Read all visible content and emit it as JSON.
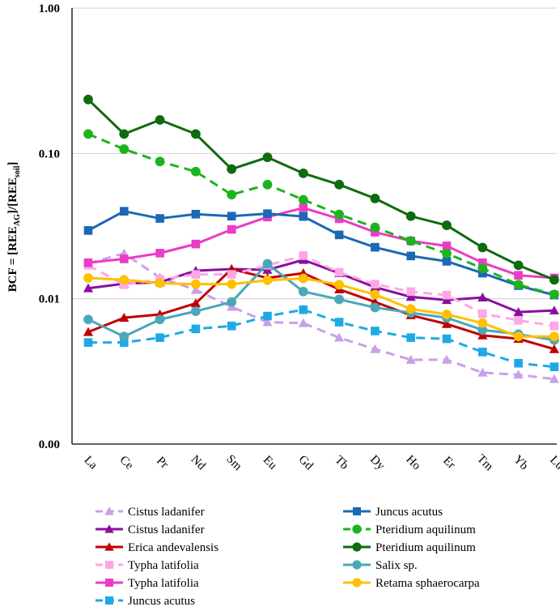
{
  "chart_data": {
    "type": "line",
    "yscale": "log",
    "ylabel_main": "BCF = [REE",
    "ylabel_sub1": "AG",
    "ylabel_mid": "]/[REE",
    "ylabel_sub2": "soil",
    "ylabel_end": "]",
    "ylim": [
      0.001,
      1.0
    ],
    "yticks": [
      {
        "value": 1.0,
        "label": "1.00"
      },
      {
        "value": 0.1,
        "label": "0.10"
      },
      {
        "value": 0.01,
        "label": "0.01"
      },
      {
        "value": 0.001,
        "label": "0.00"
      }
    ],
    "gridlines": [
      1.0,
      0.1,
      0.01
    ],
    "categories": [
      "La",
      "Ce",
      "Pr",
      "Nd",
      "Sm",
      "Eu",
      "Gd",
      "Tb",
      "Dy",
      "Ho",
      "Er",
      "Tm",
      "Yb",
      "Lu"
    ],
    "legend_position": "bottom",
    "series": [
      {
        "name": "Cistus ladanifer",
        "color": "#c9a0e8",
        "marker": "triangle",
        "dashed": true,
        "values": [
          0.0175,
          0.0205,
          0.014,
          0.0115,
          0.0088,
          0.0069,
          0.0068,
          0.0054,
          0.0045,
          0.0038,
          0.0038,
          0.0031,
          0.003,
          0.0028
        ]
      },
      {
        "name": "Cistus ladanifer",
        "color": "#8b0f9e",
        "marker": "triangle",
        "dashed": false,
        "values": [
          0.0118,
          0.0127,
          0.013,
          0.0156,
          0.016,
          0.0158,
          0.0185,
          0.015,
          0.012,
          0.0103,
          0.0098,
          0.0102,
          0.0081,
          0.0083
        ]
      },
      {
        "name": "Erica andevalensis",
        "color": "#c00000",
        "marker": "triangle",
        "dashed": false,
        "values": [
          0.0059,
          0.0074,
          0.0078,
          0.0093,
          0.016,
          0.0139,
          0.015,
          0.0116,
          0.0095,
          0.0077,
          0.0067,
          0.0056,
          0.0053,
          0.0045
        ]
      },
      {
        "name": "Typha latifolia",
        "color": "#ffa6e6",
        "marker": "square",
        "dashed": true,
        "values": [
          0.017,
          0.0125,
          0.0136,
          0.0147,
          0.0147,
          0.017,
          0.0198,
          0.0152,
          0.0126,
          0.0112,
          0.0106,
          0.0079,
          0.0071,
          0.0065
        ]
      },
      {
        "name": "Typha latifolia",
        "color": "#ec3bc7",
        "marker": "square",
        "dashed": false,
        "values": [
          0.0177,
          0.0188,
          0.0206,
          0.0238,
          0.03,
          0.0365,
          0.0422,
          0.0355,
          0.0287,
          0.025,
          0.0231,
          0.0177,
          0.0145,
          0.0139
        ]
      },
      {
        "name": "Juncus acutus",
        "color": "#1ea9e6",
        "marker": "square",
        "dashed": true,
        "values": [
          0.005,
          0.005,
          0.0054,
          0.0062,
          0.0065,
          0.0076,
          0.0084,
          0.0069,
          0.006,
          0.0054,
          0.0053,
          0.0043,
          0.0036,
          0.0034
        ]
      },
      {
        "name": "Juncus acutus",
        "color": "#1b69b4",
        "marker": "square",
        "dashed": false,
        "values": [
          0.0295,
          0.04,
          0.0357,
          0.0382,
          0.037,
          0.0385,
          0.0368,
          0.0275,
          0.0226,
          0.0197,
          0.0181,
          0.015,
          0.0123,
          0.0106
        ]
      },
      {
        "name": "Pteridium aquilinum",
        "color": "#1cb41c",
        "marker": "circle",
        "dashed": true,
        "values": [
          0.136,
          0.107,
          0.088,
          0.075,
          0.052,
          0.061,
          0.048,
          0.038,
          0.031,
          0.025,
          0.0205,
          0.0162,
          0.0125,
          0.0107
        ]
      },
      {
        "name": "Pteridium aquilinum",
        "color": "#0e6b0e",
        "marker": "circle",
        "dashed": false,
        "values": [
          0.235,
          0.136,
          0.17,
          0.136,
          0.078,
          0.094,
          0.073,
          0.061,
          0.049,
          0.037,
          0.032,
          0.0225,
          0.017,
          0.0135
        ]
      },
      {
        "name": "Salix sp.",
        "color": "#4aa8b8",
        "marker": "circle",
        "dashed": false,
        "values": [
          0.0072,
          0.0055,
          0.0072,
          0.0082,
          0.0095,
          0.0174,
          0.0112,
          0.0099,
          0.0087,
          0.008,
          0.0074,
          0.0061,
          0.0057,
          0.0052
        ]
      },
      {
        "name": "Retama sphaerocarpa",
        "color": "#ffc000",
        "marker": "circle",
        "dashed": false,
        "values": [
          0.0139,
          0.0135,
          0.0128,
          0.0126,
          0.0126,
          0.0134,
          0.0138,
          0.0125,
          0.0107,
          0.0085,
          0.0078,
          0.0068,
          0.0055,
          0.0055
        ]
      }
    ]
  }
}
